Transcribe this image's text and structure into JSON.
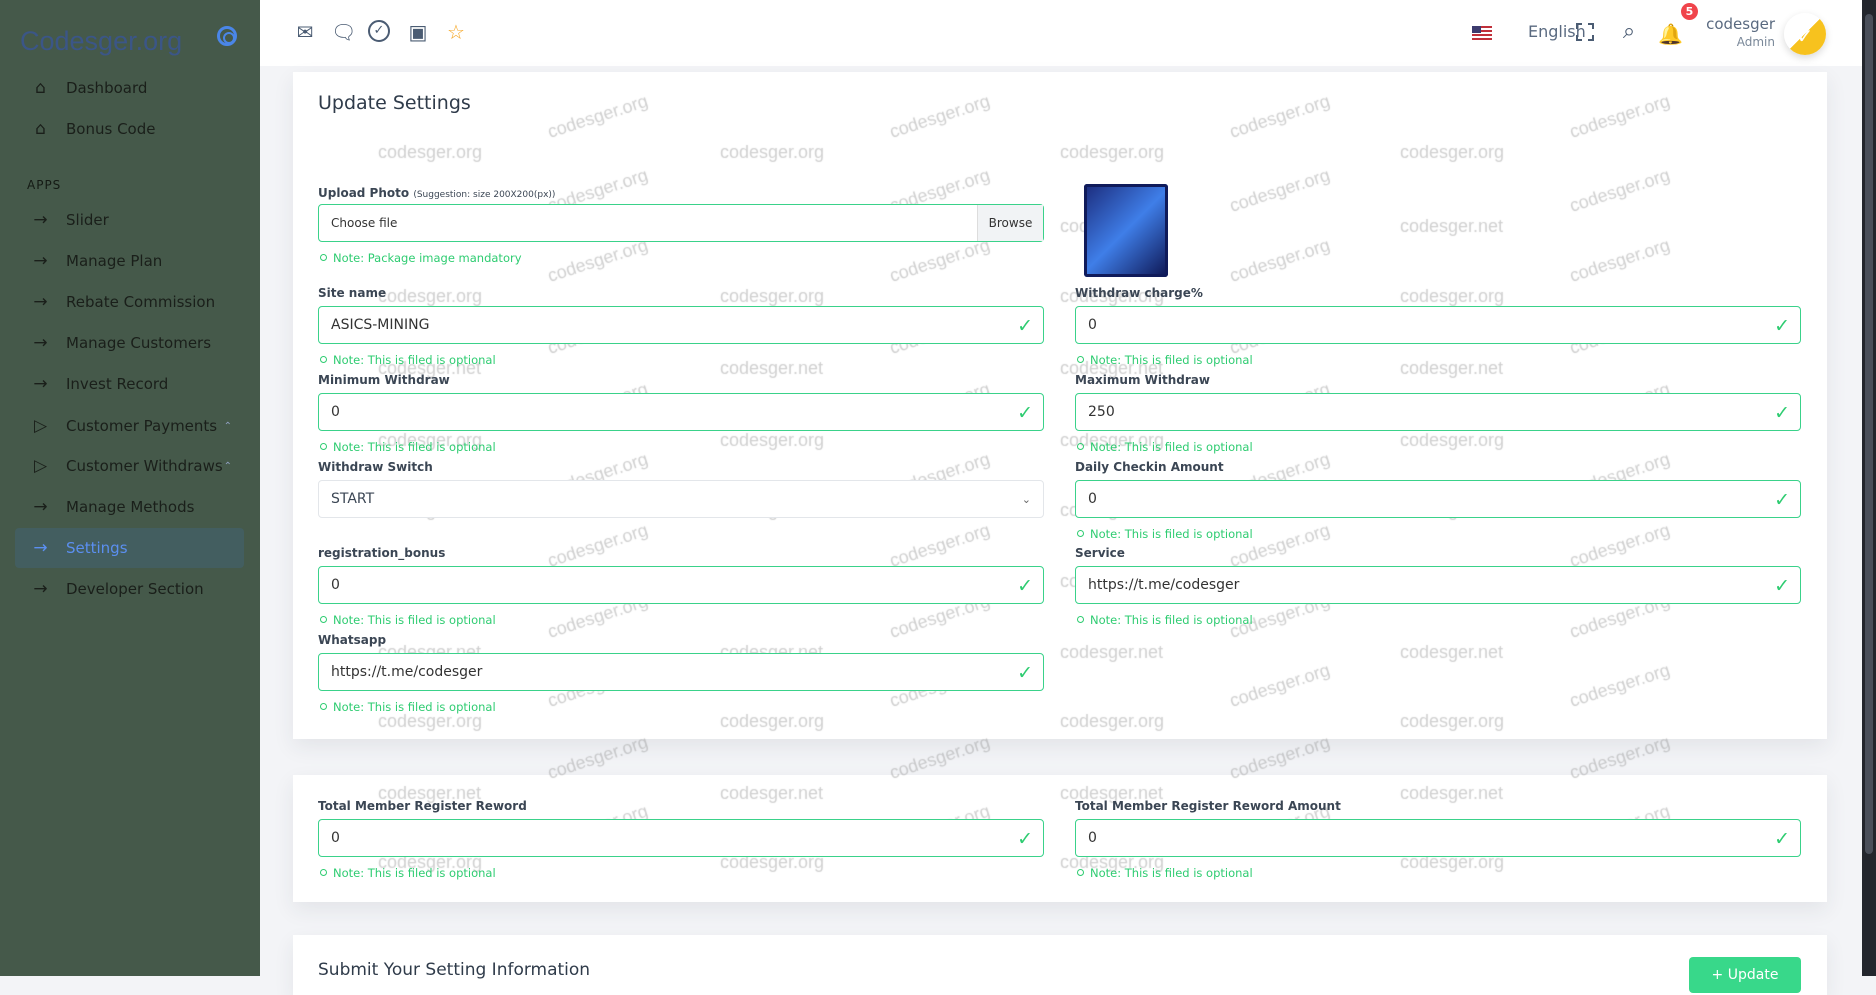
{
  "sidebar": {
    "logo": "Codesger.org",
    "section": "APPS",
    "items": [
      {
        "label": "Dashboard",
        "icon": "home-icon"
      },
      {
        "label": "Bonus Code",
        "icon": "home-icon"
      },
      {
        "label": "Slider",
        "icon": "arrow-right-icon"
      },
      {
        "label": "Manage Plan",
        "icon": "arrow-right-icon"
      },
      {
        "label": "Rebate Commission",
        "icon": "arrow-right-icon"
      },
      {
        "label": "Manage Customers",
        "icon": "arrow-right-icon"
      },
      {
        "label": "Invest Record",
        "icon": "arrow-right-icon"
      },
      {
        "label": "Customer Payments",
        "icon": "play-icon",
        "expandable": true
      },
      {
        "label": "Customer Withdraws",
        "icon": "play-icon",
        "expandable": true
      },
      {
        "label": "Manage Methods",
        "icon": "arrow-right-icon"
      },
      {
        "label": "Settings",
        "icon": "arrow-right-icon",
        "active": true
      },
      {
        "label": "Developer Section",
        "icon": "arrow-right-icon"
      }
    ]
  },
  "topbar": {
    "icons": [
      "mail-icon",
      "chat-icon",
      "check-circle-icon",
      "calendar-icon",
      "star-icon"
    ],
    "language": "English",
    "notification_count": "5",
    "user": {
      "name": "codesger",
      "role": "Admin"
    }
  },
  "form": {
    "title": "Update Settings",
    "upload": {
      "label": "Upload Photo",
      "hint": "(Suggestion: size 200X200(px))",
      "placeholder": "Choose file",
      "browse": "Browse",
      "note": "Note: Package image mandatory"
    },
    "fields": {
      "site_name": {
        "label": "Site name",
        "value": "ASICS-MINING",
        "note": "Note: This is filed is optional"
      },
      "withdraw_charge": {
        "label": "Withdraw charge%",
        "value": "0",
        "note": "Note: This is filed is optional"
      },
      "min_withdraw": {
        "label": "Minimum Withdraw",
        "value": "0",
        "note": "Note: This is filed is optional"
      },
      "max_withdraw": {
        "label": "Maximum Withdraw",
        "value": "250",
        "note": "Note: This is filed is optional"
      },
      "withdraw_switch": {
        "label": "Withdraw Switch",
        "value": "START"
      },
      "daily_checkin": {
        "label": "Daily Checkin Amount",
        "value": "0",
        "note": "Note: This is filed is optional"
      },
      "registration_bonus": {
        "label": "registration_bonus",
        "value": "0",
        "note": "Note: This is filed is optional"
      },
      "service": {
        "label": "Service",
        "value": "https://t.me/codesger",
        "note": "Note: This is filed is optional"
      },
      "whatsapp": {
        "label": "Whatsapp",
        "value": "https://t.me/codesger",
        "note": "Note: This is filed is optional"
      },
      "total_member_reward": {
        "label": "Total Member Register Reword",
        "value": "0",
        "note": "Note: This is filed is optional"
      },
      "total_member_reward_amount": {
        "label": "Total Member Register Reword Amount",
        "value": "0",
        "note": "Note: This is filed is optional"
      }
    }
  },
  "submit": {
    "title": "Submit Your Setting Information",
    "button": "+ Update"
  },
  "watermarks": [
    "codesger.org",
    "codesger.net"
  ],
  "colors": {
    "sidebar": "#45594a",
    "accent": "#3ad28a",
    "active": "#5b8ff0",
    "badge": "#f0444b"
  }
}
